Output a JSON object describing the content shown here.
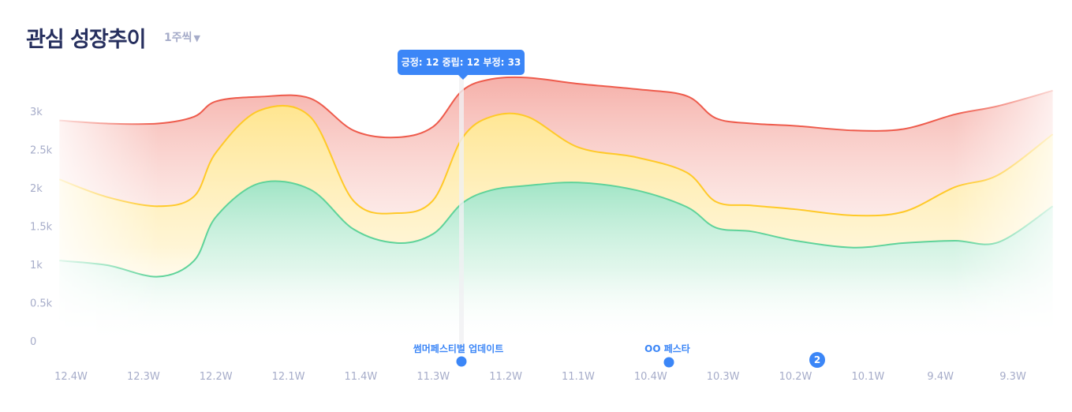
{
  "header": {
    "title": "관심 성장추이",
    "period": "1주씩"
  },
  "tooltip": {
    "text": "긍정: 12 중립: 12 부정: 33"
  },
  "events": [
    {
      "label": "썸머페스티벌 업데이트",
      "x": 5.4
    },
    {
      "label": "OO 페스타",
      "x": 8.25
    }
  ],
  "cluster_badge": {
    "count": "2",
    "x": 10.3
  },
  "chart_data": {
    "type": "area",
    "stacked": true,
    "title": "관심 성장추이",
    "ylim": [
      0,
      3000
    ],
    "yticks": [
      {
        "v": 0,
        "label": "0"
      },
      {
        "v": 500,
        "label": "0.5k"
      },
      {
        "v": 1000,
        "label": "1k"
      },
      {
        "v": 1500,
        "label": "1.5k"
      },
      {
        "v": 2000,
        "label": "2k"
      },
      {
        "v": 2500,
        "label": "2.5k"
      },
      {
        "v": 3000,
        "label": "3k"
      }
    ],
    "categories": [
      "12.4W",
      "12.3W",
      "12.2W",
      "12.1W",
      "11.4W",
      "11.3W",
      "11.2W",
      "11.1W",
      "10.4W",
      "10.3W",
      "10.2W",
      "10.1W",
      "9.4W",
      "9.3W"
    ],
    "x": [
      -0.16,
      0.5,
      1.2,
      1.7,
      2.0,
      2.6,
      3.3,
      3.9,
      4.5,
      5.0,
      5.4,
      5.8,
      6.3,
      7.0,
      7.8,
      8.5,
      8.9,
      9.4,
      10.0,
      10.8,
      11.5,
      12.2,
      12.8,
      13.55
    ],
    "series": [
      {
        "name": "부정",
        "color": "#ee5b4c",
        "cumulative": [
          2890,
          2850,
          2850,
          2940,
          3140,
          3200,
          3180,
          2760,
          2670,
          2810,
          3280,
          3430,
          3450,
          3370,
          3300,
          3210,
          2920,
          2850,
          2820,
          2760,
          2780,
          2970,
          3080,
          3280
        ]
      },
      {
        "name": "중립",
        "color": "#ffc928",
        "cumulative": [
          2120,
          1890,
          1770,
          1900,
          2470,
          3020,
          2940,
          1840,
          1680,
          1850,
          2660,
          2940,
          2940,
          2540,
          2410,
          2210,
          1830,
          1780,
          1730,
          1650,
          1700,
          2020,
          2180,
          2710
        ]
      },
      {
        "name": "긍정",
        "color": "#5fd39a",
        "cumulative": [
          1060,
          1000,
          850,
          1060,
          1630,
          2070,
          1990,
          1470,
          1290,
          1410,
          1810,
          1980,
          2040,
          2080,
          1980,
          1760,
          1490,
          1440,
          1320,
          1230,
          1290,
          1320,
          1300,
          1770
        ]
      }
    ],
    "highlight_x": 5.4
  }
}
